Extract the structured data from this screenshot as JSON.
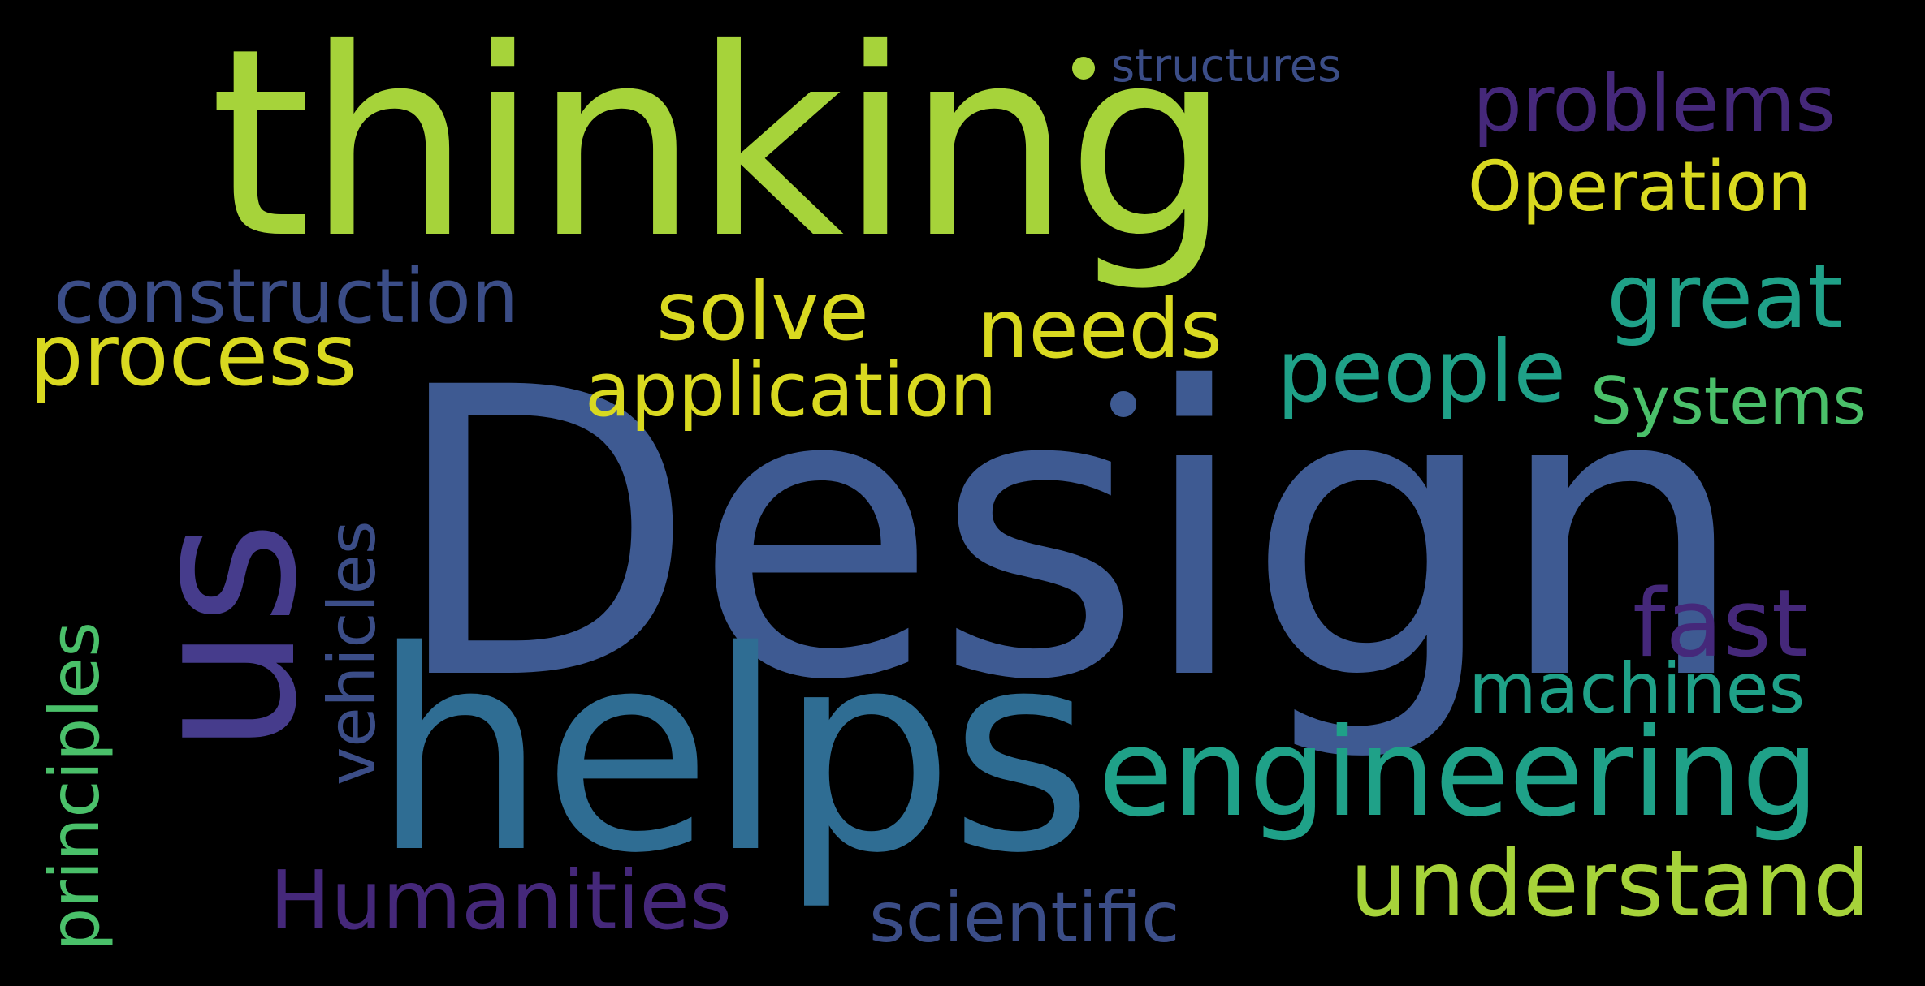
{
  "colors": {
    "background": "#000000",
    "yellow_green": "#a6d33a",
    "yellow": "#d9d920",
    "blue": "#3e5a92",
    "steel_blue": "#2f6d93",
    "navy": "#3b4d87",
    "teal": "#1fa188",
    "green": "#4ac06a",
    "purple": "#45287a",
    "violet": "#463c8c"
  },
  "words": {
    "design": "Design",
    "thinking": "thinking",
    "helps": "helps",
    "us": "us",
    "engineering": "engineering",
    "construction": "construction",
    "process": "process",
    "solve": "solve",
    "needs": "needs",
    "application": "application",
    "people": "people",
    "great": "great",
    "systems": "Systems",
    "operation": "Operation",
    "problems": "problems",
    "structures": "structures",
    "fast": "fast",
    "machines": "machines",
    "understand": "understand",
    "scientific": "scientific",
    "humanities": "Humanities",
    "vehicles": "vehicles",
    "principles": "principles"
  }
}
